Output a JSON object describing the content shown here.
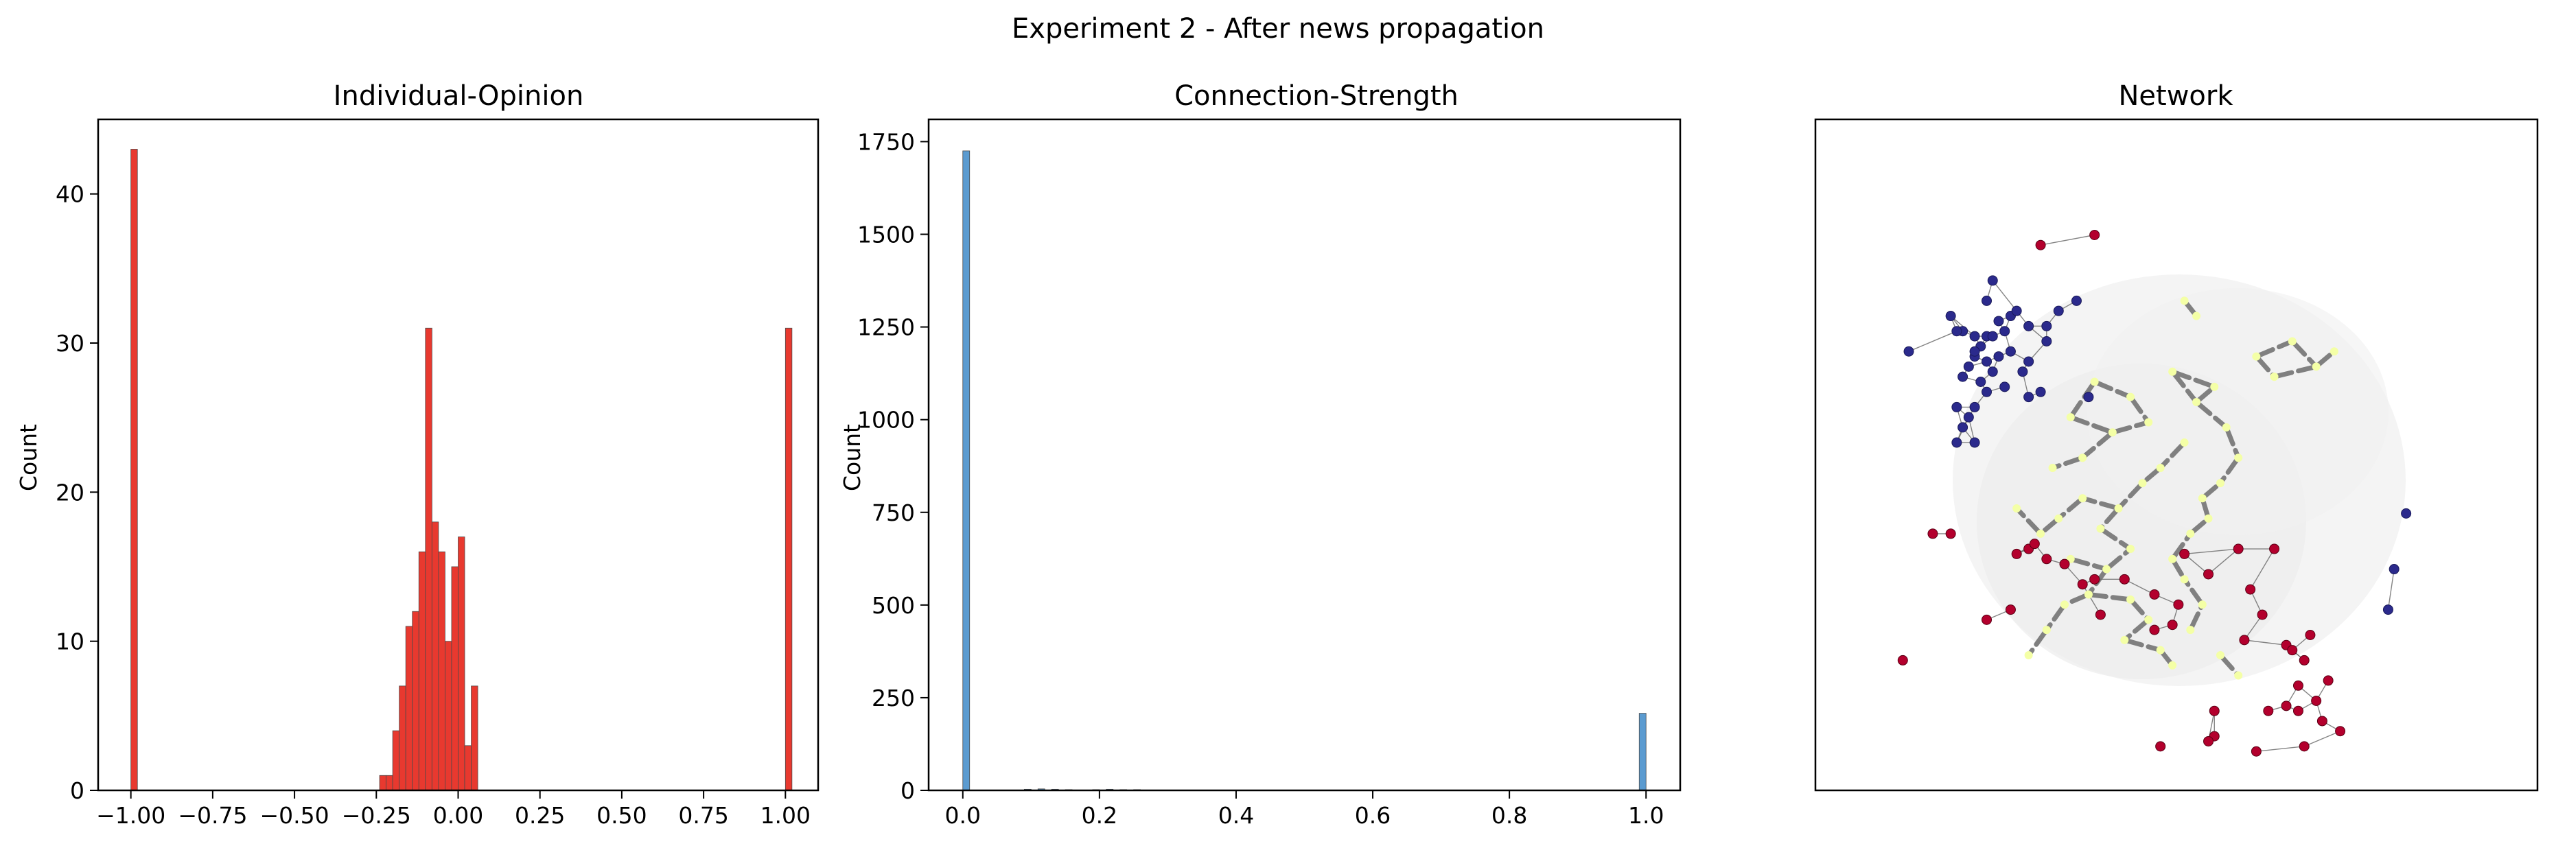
{
  "figure": {
    "suptitle": "Experiment 2 - After news propagation"
  },
  "chart_data": [
    {
      "type": "bar",
      "title": "Individual-Opinion",
      "xlabel": "",
      "ylabel": "Count",
      "xlim": [
        -1.1,
        1.1
      ],
      "ylim": [
        0,
        45
      ],
      "xticks": [
        -1.0,
        -0.75,
        -0.5,
        -0.25,
        0.0,
        0.25,
        0.5,
        0.75,
        1.0
      ],
      "xtick_labels": [
        "−1.00",
        "−0.75",
        "−0.50",
        "−0.25",
        "0.00",
        "0.25",
        "0.50",
        "0.75",
        "1.00"
      ],
      "yticks": [
        0,
        10,
        20,
        30,
        40
      ],
      "ytick_labels": [
        "0",
        "10",
        "20",
        "30",
        "40"
      ],
      "bin_width": 0.02,
      "bar_color": "#e8392f",
      "bins": [
        {
          "x": -1.0,
          "count": 43
        },
        {
          "x": -0.24,
          "count": 1
        },
        {
          "x": -0.22,
          "count": 1
        },
        {
          "x": -0.2,
          "count": 4
        },
        {
          "x": -0.18,
          "count": 7
        },
        {
          "x": -0.16,
          "count": 11
        },
        {
          "x": -0.14,
          "count": 12
        },
        {
          "x": -0.12,
          "count": 16
        },
        {
          "x": -0.1,
          "count": 31
        },
        {
          "x": -0.08,
          "count": 18
        },
        {
          "x": -0.06,
          "count": 16
        },
        {
          "x": -0.04,
          "count": 10
        },
        {
          "x": -0.02,
          "count": 15
        },
        {
          "x": 0.0,
          "count": 17
        },
        {
          "x": 0.02,
          "count": 3
        },
        {
          "x": 0.04,
          "count": 7
        },
        {
          "x": 1.0,
          "count": 31
        }
      ]
    },
    {
      "type": "bar",
      "title": "Connection-Strength",
      "xlabel": "",
      "ylabel": "Count",
      "xlim": [
        -0.05,
        1.05
      ],
      "ylim": [
        0,
        1810
      ],
      "xticks": [
        0.0,
        0.2,
        0.4,
        0.6,
        0.8,
        1.0
      ],
      "xtick_labels": [
        "0.0",
        "0.2",
        "0.4",
        "0.6",
        "0.8",
        "1.0"
      ],
      "yticks": [
        0,
        250,
        500,
        750,
        1000,
        1250,
        1500,
        1750
      ],
      "ytick_labels": [
        "0",
        "250",
        "500",
        "750",
        "1000",
        "1250",
        "1500",
        "1750"
      ],
      "bin_width": 0.01,
      "bar_color": "#5b9bd0",
      "bins": [
        {
          "x": 0.0,
          "count": 1725
        },
        {
          "x": 0.09,
          "count": 3
        },
        {
          "x": 0.11,
          "count": 4
        },
        {
          "x": 0.13,
          "count": 3
        },
        {
          "x": 0.15,
          "count": 2
        },
        {
          "x": 0.19,
          "count": 2
        },
        {
          "x": 0.21,
          "count": 3
        },
        {
          "x": 0.23,
          "count": 2
        },
        {
          "x": 0.25,
          "count": 2
        },
        {
          "x": 0.99,
          "count": 208
        }
      ]
    },
    {
      "type": "scatter",
      "title": "Network",
      "xlabel": "",
      "ylabel": "",
      "xlim": [
        0,
        1
      ],
      "ylim": [
        0,
        1
      ],
      "axes_visible": false,
      "colors": {
        "negative_opinion": "#2b2a8c",
        "positive_opinion": "#b3002d",
        "neutral_opinion": "#f4ffa6",
        "strong_edge": "#808080",
        "weak_edge": "#666666"
      },
      "nodes": {
        "negative": [
          [
            0.11,
            0.81
          ],
          [
            0.19,
            0.63
          ],
          [
            0.22,
            0.63
          ],
          [
            0.18,
            0.88
          ],
          [
            0.2,
            0.85
          ],
          [
            0.22,
            0.84
          ],
          [
            0.24,
            0.84
          ],
          [
            0.25,
            0.84
          ],
          [
            0.23,
            0.82
          ],
          [
            0.22,
            0.8
          ],
          [
            0.21,
            0.78
          ],
          [
            0.24,
            0.79
          ],
          [
            0.26,
            0.8
          ],
          [
            0.25,
            0.77
          ],
          [
            0.23,
            0.75
          ],
          [
            0.2,
            0.76
          ],
          [
            0.19,
            0.7
          ],
          [
            0.21,
            0.68
          ],
          [
            0.2,
            0.66
          ],
          [
            0.22,
            0.7
          ],
          [
            0.24,
            0.73
          ],
          [
            0.27,
            0.74
          ],
          [
            0.28,
            0.81
          ],
          [
            0.28,
            0.88
          ],
          [
            0.27,
            0.85
          ],
          [
            0.26,
            0.87
          ],
          [
            0.31,
            0.79
          ],
          [
            0.31,
            0.72
          ],
          [
            0.3,
            0.77
          ],
          [
            0.33,
            0.73
          ],
          [
            0.34,
            0.83
          ],
          [
            0.31,
            0.86
          ],
          [
            0.25,
            0.95
          ],
          [
            0.24,
            0.91
          ],
          [
            0.29,
            0.89
          ],
          [
            0.34,
            0.86
          ],
          [
            0.36,
            0.89
          ],
          [
            0.39,
            0.91
          ],
          [
            0.41,
            0.72
          ],
          [
            0.22,
            0.81
          ],
          [
            0.19,
            0.85
          ],
          [
            0.94,
            0.49
          ],
          [
            0.92,
            0.38
          ],
          [
            0.91,
            0.3
          ]
        ],
        "positive": [
          [
            0.33,
            1.02
          ],
          [
            0.42,
            1.04
          ],
          [
            0.15,
            0.45
          ],
          [
            0.18,
            0.45
          ],
          [
            0.29,
            0.41
          ],
          [
            0.31,
            0.42
          ],
          [
            0.32,
            0.43
          ],
          [
            0.34,
            0.4
          ],
          [
            0.37,
            0.39
          ],
          [
            0.42,
            0.36
          ],
          [
            0.47,
            0.36
          ],
          [
            0.57,
            0.41
          ],
          [
            0.61,
            0.37
          ],
          [
            0.66,
            0.42
          ],
          [
            0.72,
            0.42
          ],
          [
            0.68,
            0.34
          ],
          [
            0.7,
            0.29
          ],
          [
            0.67,
            0.24
          ],
          [
            0.74,
            0.23
          ],
          [
            0.77,
            0.2
          ],
          [
            0.78,
            0.25
          ],
          [
            0.76,
            0.15
          ],
          [
            0.81,
            0.16
          ],
          [
            0.79,
            0.12
          ],
          [
            0.74,
            0.11
          ],
          [
            0.76,
            0.1
          ],
          [
            0.71,
            0.1
          ],
          [
            0.62,
            0.05
          ],
          [
            0.61,
            0.04
          ],
          [
            0.69,
            0.02
          ],
          [
            0.53,
            0.03
          ],
          [
            0.43,
            0.29
          ],
          [
            0.4,
            0.35
          ],
          [
            0.52,
            0.33
          ],
          [
            0.56,
            0.31
          ],
          [
            0.52,
            0.26
          ],
          [
            0.62,
            0.1
          ],
          [
            0.8,
            0.08
          ],
          [
            0.83,
            0.06
          ],
          [
            0.28,
            0.3
          ],
          [
            0.24,
            0.28
          ],
          [
            0.1,
            0.2
          ],
          [
            0.77,
            0.03
          ],
          [
            0.75,
            0.22
          ],
          [
            0.55,
            0.27
          ]
        ],
        "neutral": [
          [
            0.38,
            0.68
          ],
          [
            0.42,
            0.75
          ],
          [
            0.45,
            0.65
          ],
          [
            0.48,
            0.72
          ],
          [
            0.51,
            0.67
          ],
          [
            0.55,
            0.77
          ],
          [
            0.57,
            0.63
          ],
          [
            0.59,
            0.71
          ],
          [
            0.62,
            0.74
          ],
          [
            0.64,
            0.66
          ],
          [
            0.66,
            0.6
          ],
          [
            0.69,
            0.8
          ],
          [
            0.72,
            0.76
          ],
          [
            0.75,
            0.83
          ],
          [
            0.79,
            0.78
          ],
          [
            0.82,
            0.81
          ],
          [
            0.57,
            0.91
          ],
          [
            0.59,
            0.88
          ],
          [
            0.53,
            0.58
          ],
          [
            0.5,
            0.55
          ],
          [
            0.46,
            0.5
          ],
          [
            0.43,
            0.46
          ],
          [
            0.4,
            0.52
          ],
          [
            0.36,
            0.48
          ],
          [
            0.33,
            0.45
          ],
          [
            0.38,
            0.4
          ],
          [
            0.44,
            0.38
          ],
          [
            0.48,
            0.32
          ],
          [
            0.51,
            0.28
          ],
          [
            0.47,
            0.24
          ],
          [
            0.53,
            0.22
          ],
          [
            0.58,
            0.26
          ],
          [
            0.6,
            0.31
          ],
          [
            0.55,
            0.4
          ],
          [
            0.58,
            0.45
          ],
          [
            0.6,
            0.52
          ],
          [
            0.63,
            0.55
          ],
          [
            0.61,
            0.48
          ],
          [
            0.57,
            0.36
          ],
          [
            0.48,
            0.42
          ],
          [
            0.41,
            0.33
          ],
          [
            0.37,
            0.31
          ],
          [
            0.34,
            0.26
          ],
          [
            0.31,
            0.21
          ],
          [
            0.55,
            0.19
          ],
          [
            0.63,
            0.21
          ],
          [
            0.66,
            0.17
          ],
          [
            0.4,
            0.6
          ],
          [
            0.35,
            0.58
          ],
          [
            0.29,
            0.5
          ]
        ]
      }
    }
  ]
}
